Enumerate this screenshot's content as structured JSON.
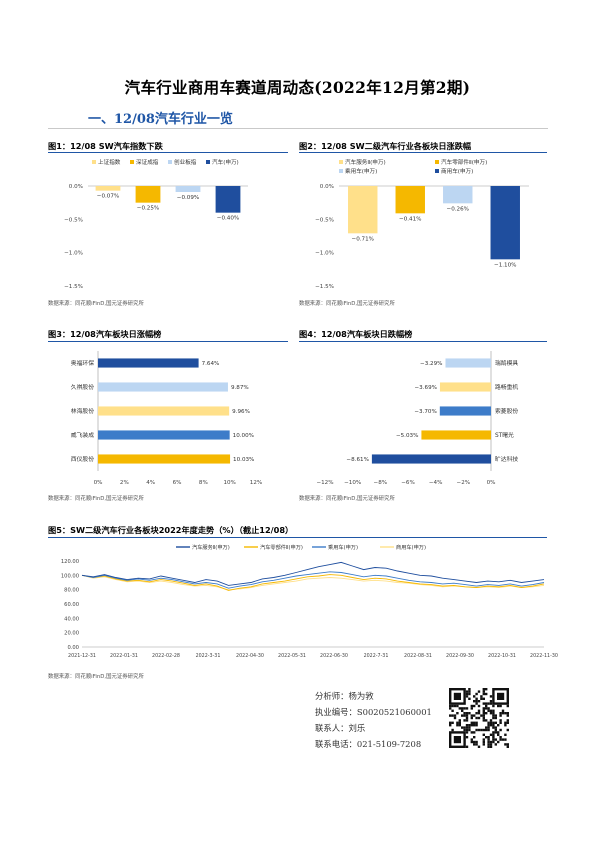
{
  "title": "汽车行业商用车赛道周动态(2022年12月第2期)",
  "section": "一、12/08汽车行业一览",
  "source": "数据来源：同花顺iFinD,国元证券研究所",
  "figures": {
    "f1": {
      "title": "图1：12/08 SW汽车指数下跌"
    },
    "f2": {
      "title": "图2：12/08 SW二级汽车行业各板块日涨跌幅"
    },
    "f3": {
      "title": "图3：12/08汽车板块日涨幅榜"
    },
    "f4": {
      "title": "图4：12/08汽车板块日跌幅榜"
    },
    "f5": {
      "title": "图5：SW二级汽车行业各板块2022年度走势（%）（截止12/08）"
    }
  },
  "contact": {
    "analyst": "分析师：杨为敩",
    "license": "执业编号：S0020521060001",
    "contact_person": "联系人：刘乐",
    "phone": "联系电话：021-5109-7208"
  },
  "chart_data": [
    {
      "id": "f1",
      "type": "bar",
      "categories": [
        "上证指数",
        "深证成指",
        "创业板指",
        "汽车(申万)"
      ],
      "values": [
        -0.07,
        -0.25,
        -0.09,
        -0.4
      ],
      "value_labels": [
        "−0.07%",
        "−0.25%",
        "−0.09%",
        "−0.40%"
      ],
      "colors": [
        "#ffe08a",
        "#f5b800",
        "#bcd6f2",
        "#1f4e9e"
      ],
      "yticks": [
        "0.0%",
        "−0.5%",
        "−1.0%",
        "−1.5%"
      ],
      "ylim": [
        -1.5,
        0
      ],
      "legend": "top"
    },
    {
      "id": "f2",
      "type": "bar",
      "categories": [
        "汽车服务Ⅱ(申万)",
        "汽车零部件Ⅱ(申万)",
        "乘用车(申万)",
        "商用车(申万)"
      ],
      "values": [
        -0.71,
        -0.41,
        -0.26,
        -1.1
      ],
      "value_labels": [
        "−0.71%",
        "−0.41%",
        "−0.26%",
        "−1.10%"
      ],
      "colors": [
        "#ffe08a",
        "#f5b800",
        "#bcd6f2",
        "#1f4e9e"
      ],
      "yticks": [
        "0.0%",
        "−0.5%",
        "−1.0%",
        "−1.5%"
      ],
      "ylim": [
        -1.5,
        0
      ],
      "legend": "top"
    },
    {
      "id": "f3",
      "type": "bar",
      "orientation": "horizontal",
      "categories": [
        "奥福环保",
        "久祺股份",
        "林海股份",
        "威飞装成",
        "西仪股份"
      ],
      "values": [
        7.64,
        9.87,
        9.96,
        10.0,
        10.03
      ],
      "value_labels": [
        "7.64%",
        "9.87%",
        "9.96%",
        "10.00%",
        "10.03%"
      ],
      "colors": [
        "#1f4e9e",
        "#bcd6f2",
        "#ffe08a",
        "#3d7cc9",
        "#f5b800"
      ],
      "xticks": [
        "0%",
        "2%",
        "4%",
        "6%",
        "8%",
        "10%",
        "12%"
      ],
      "xlim": [
        0,
        12
      ]
    },
    {
      "id": "f4",
      "type": "bar",
      "orientation": "horizontal",
      "categories": [
        "瑞鹄模具",
        "路畅重机",
        "索菱股份",
        "ST曙光",
        "旷达科技"
      ],
      "values": [
        -3.29,
        -3.69,
        -3.7,
        -5.03,
        -8.61
      ],
      "value_labels": [
        "−3.29%",
        "−3.69%",
        "−3.70%",
        "−5.03%",
        "−8.61%"
      ],
      "colors": [
        "#bcd6f2",
        "#ffe08a",
        "#3d7cc9",
        "#f5b800",
        "#1f4e9e"
      ],
      "xticks": [
        "−12%",
        "−10%",
        "−8%",
        "−6%",
        "−4%",
        "−2%",
        "0%"
      ],
      "xlim": [
        -12,
        0
      ]
    },
    {
      "id": "f5",
      "type": "line",
      "x_ticks": [
        "2021-12-31",
        "2022-01-31",
        "2022-02-28",
        "2022-3-31",
        "2022-04-30",
        "2022-05-31",
        "2022-06-30",
        "2022-7-31",
        "2022-08-31",
        "2022-09-30",
        "2022-10-31",
        "2022-11-30"
      ],
      "yticks": [
        "120.00",
        "100.00",
        "80.00",
        "60.00",
        "40.00",
        "20.00",
        "0.00"
      ],
      "ylim": [
        0,
        120
      ],
      "series": [
        {
          "name": "汽车服务Ⅱ(申万)",
          "color": "#1f4e9e",
          "values": [
            100,
            98,
            101,
            97,
            94,
            96,
            95,
            99,
            96,
            93,
            90,
            94,
            92,
            86,
            88,
            90,
            95,
            97,
            100,
            104,
            108,
            112,
            115,
            118,
            113,
            108,
            111,
            110,
            106,
            103,
            100,
            99,
            96,
            94,
            92,
            90,
            92,
            91,
            93,
            90,
            92,
            94
          ]
        },
        {
          "name": "汽车零部件Ⅱ(申万)",
          "color": "#f5b800",
          "values": [
            100,
            97,
            99,
            95,
            92,
            93,
            91,
            94,
            92,
            89,
            86,
            88,
            85,
            79,
            82,
            84,
            88,
            90,
            92,
            95,
            98,
            99,
            101,
            100,
            97,
            94,
            96,
            95,
            92,
            90,
            88,
            87,
            85,
            86,
            84,
            83,
            85,
            84,
            86,
            83,
            85,
            88
          ]
        },
        {
          "name": "乘用车(申万)",
          "color": "#3d7cc9",
          "values": [
            100,
            97,
            100,
            96,
            93,
            95,
            93,
            96,
            94,
            91,
            88,
            90,
            88,
            82,
            85,
            87,
            91,
            93,
            96,
            99,
            101,
            103,
            105,
            104,
            101,
            98,
            100,
            99,
            96,
            93,
            91,
            90,
            88,
            89,
            87,
            85,
            87,
            86,
            88,
            85,
            87,
            90
          ]
        },
        {
          "name": "商用车(申万)",
          "color": "#ffe08a",
          "values": [
            100,
            96,
            98,
            94,
            91,
            92,
            90,
            92,
            90,
            87,
            85,
            86,
            84,
            80,
            81,
            83,
            86,
            88,
            90,
            92,
            95,
            96,
            97,
            96,
            94,
            92,
            93,
            92,
            90,
            89,
            87,
            86,
            84,
            85,
            84,
            83,
            84,
            83,
            85,
            83,
            84,
            86
          ]
        }
      ],
      "legend": "top"
    }
  ]
}
